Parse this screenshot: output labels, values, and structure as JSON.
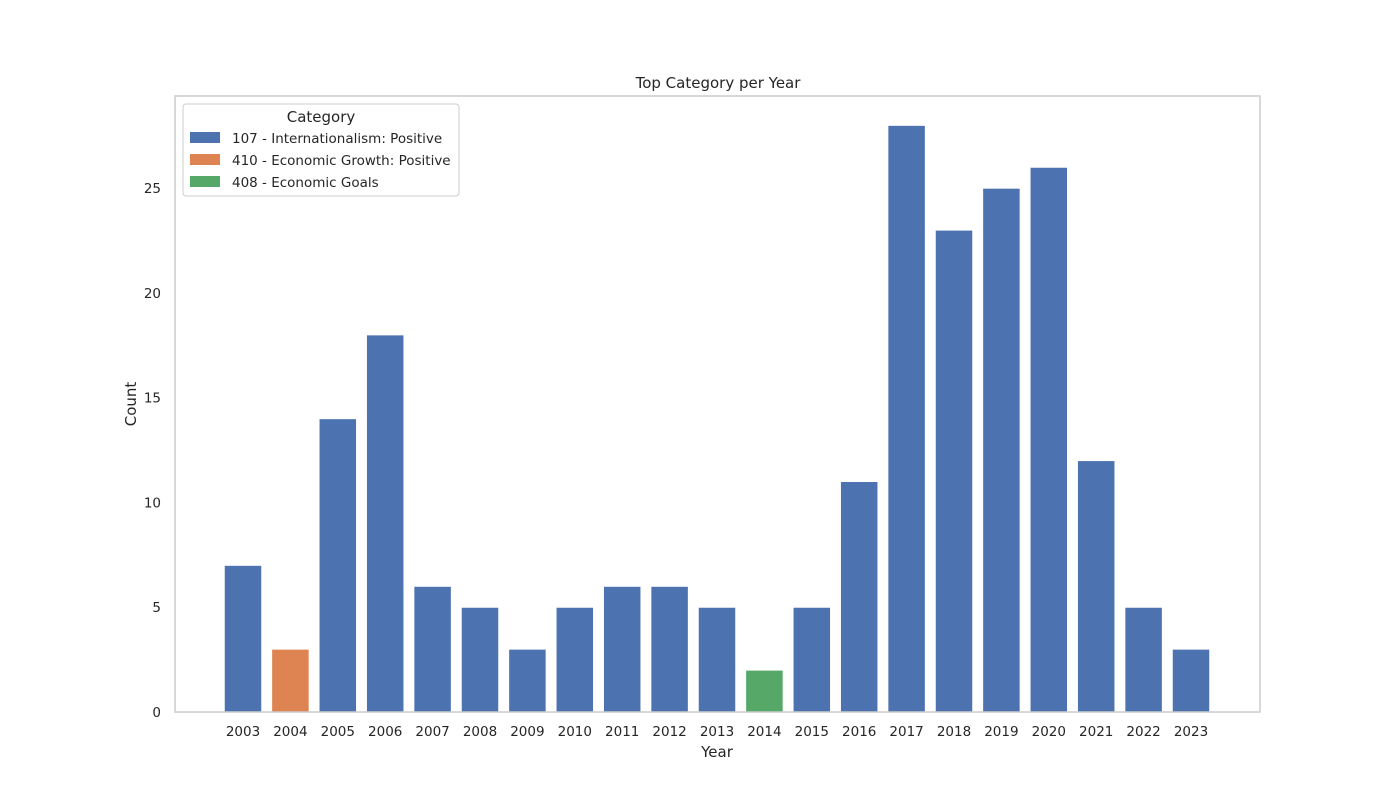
{
  "chart_data": {
    "type": "bar",
    "title": "Top Category per Year",
    "xlabel": "Year",
    "ylabel": "Count",
    "ylim": [
      0,
      29.4
    ],
    "yticks": [
      0,
      5,
      10,
      15,
      20,
      25
    ],
    "grid": false,
    "legend": {
      "title": "Category",
      "placement": "top-left",
      "entries": [
        {
          "name": "107 - Internationalism: Positive",
          "color": "#4c72b0"
        },
        {
          "name": "410 - Economic Growth: Positive",
          "color": "#dd8452"
        },
        {
          "name": "408 - Economic Goals",
          "color": "#55a868"
        }
      ]
    },
    "categories": [
      "2003",
      "2004",
      "2005",
      "2006",
      "2007",
      "2008",
      "2009",
      "2010",
      "2011",
      "2012",
      "2013",
      "2014",
      "2015",
      "2016",
      "2017",
      "2018",
      "2019",
      "2020",
      "2021",
      "2022",
      "2023"
    ],
    "values": [
      7,
      3,
      14,
      18,
      6,
      5,
      3,
      5,
      6,
      6,
      5,
      2,
      5,
      11,
      28,
      23,
      25,
      26,
      12,
      5,
      3
    ],
    "bar_category": [
      0,
      1,
      0,
      0,
      0,
      0,
      0,
      0,
      0,
      0,
      0,
      2,
      0,
      0,
      0,
      0,
      0,
      0,
      0,
      0,
      0
    ]
  }
}
